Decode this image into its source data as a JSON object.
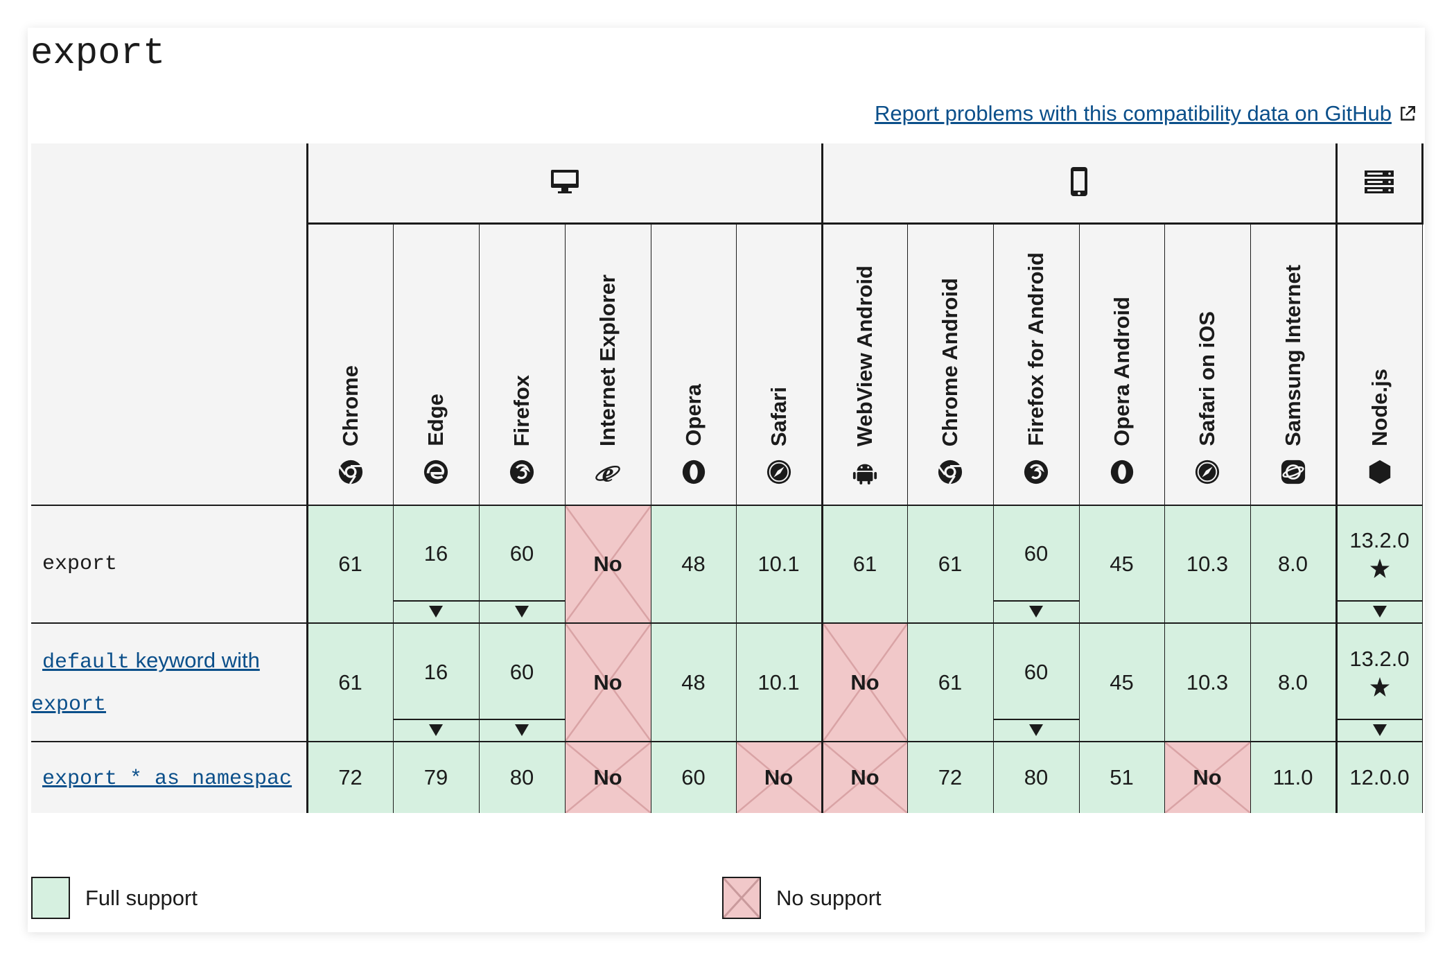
{
  "page": {
    "title": "export",
    "report_link": "Report problems with this compatibility data on GitHub"
  },
  "groups": [
    {
      "name": "desktop",
      "icon": "desktop-icon"
    },
    {
      "name": "mobile",
      "icon": "mobile-icon"
    },
    {
      "name": "server",
      "icon": "server-icon"
    }
  ],
  "browsers": [
    {
      "name": "Chrome",
      "icon": "chrome-icon"
    },
    {
      "name": "Edge",
      "icon": "edge-icon"
    },
    {
      "name": "Firefox",
      "icon": "firefox-icon"
    },
    {
      "name": "Internet Explorer",
      "icon": "internet-explorer-icon"
    },
    {
      "name": "Opera",
      "icon": "opera-icon"
    },
    {
      "name": "Safari",
      "icon": "safari-icon"
    },
    {
      "name": "WebView Android",
      "icon": "android-icon"
    },
    {
      "name": "Chrome Android",
      "icon": "chrome-icon"
    },
    {
      "name": "Firefox for Android",
      "icon": "firefox-icon"
    },
    {
      "name": "Opera Android",
      "icon": "opera-icon"
    },
    {
      "name": "Safari on iOS",
      "icon": "safari-icon"
    },
    {
      "name": "Samsung Internet",
      "icon": "samsung-internet-icon"
    },
    {
      "name": "Node.js",
      "icon": "nodejs-icon"
    }
  ],
  "features": [
    {
      "code": "export",
      "cells": [
        {
          "value": "61",
          "support": "yes"
        },
        {
          "value": "16",
          "support": "yes",
          "expand": true
        },
        {
          "value": "60",
          "support": "yes",
          "expand": true
        },
        {
          "value": "No",
          "support": "no"
        },
        {
          "value": "48",
          "support": "yes"
        },
        {
          "value": "10.1",
          "support": "yes"
        },
        {
          "value": "61",
          "support": "yes"
        },
        {
          "value": "61",
          "support": "yes"
        },
        {
          "value": "60",
          "support": "yes",
          "expand": true
        },
        {
          "value": "45",
          "support": "yes"
        },
        {
          "value": "10.3",
          "support": "yes"
        },
        {
          "value": "8.0",
          "support": "yes"
        },
        {
          "value": "13.2.0",
          "support": "yes",
          "expand": true,
          "star": true
        }
      ]
    },
    {
      "code": "default",
      "text": " keyword with ",
      "code2": "export",
      "cells": [
        {
          "value": "61",
          "support": "yes"
        },
        {
          "value": "16",
          "support": "yes",
          "expand": true
        },
        {
          "value": "60",
          "support": "yes",
          "expand": true
        },
        {
          "value": "No",
          "support": "no"
        },
        {
          "value": "48",
          "support": "yes"
        },
        {
          "value": "10.1",
          "support": "yes"
        },
        {
          "value": "No",
          "support": "no"
        },
        {
          "value": "61",
          "support": "yes"
        },
        {
          "value": "60",
          "support": "yes",
          "expand": true
        },
        {
          "value": "45",
          "support": "yes"
        },
        {
          "value": "10.3",
          "support": "yes"
        },
        {
          "value": "8.0",
          "support": "yes"
        },
        {
          "value": "13.2.0",
          "support": "yes",
          "expand": true,
          "star": true
        }
      ]
    },
    {
      "code": "export * as namespac",
      "cells": [
        {
          "value": "72",
          "support": "yes"
        },
        {
          "value": "79",
          "support": "yes"
        },
        {
          "value": "80",
          "support": "yes"
        },
        {
          "value": "No",
          "support": "no"
        },
        {
          "value": "60",
          "support": "yes"
        },
        {
          "value": "No",
          "support": "no"
        },
        {
          "value": "No",
          "support": "no"
        },
        {
          "value": "72",
          "support": "yes"
        },
        {
          "value": "80",
          "support": "yes"
        },
        {
          "value": "51",
          "support": "yes"
        },
        {
          "value": "No",
          "support": "no"
        },
        {
          "value": "11.0",
          "support": "yes"
        },
        {
          "value": "12.0.0",
          "support": "yes"
        }
      ]
    }
  ],
  "legend": {
    "full": "Full support",
    "none": "No support"
  },
  "colors": {
    "full_support": "#d6f0e0",
    "no_support": "#f1c8c9",
    "link": "#0b4f8a"
  }
}
